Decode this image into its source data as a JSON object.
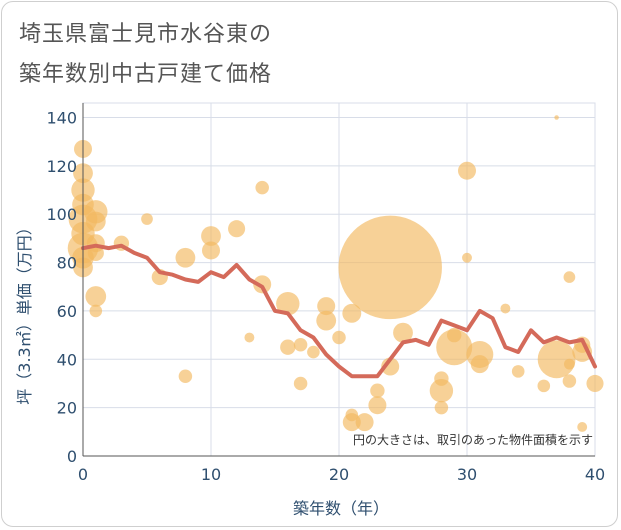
{
  "title_lines": [
    "埼玉県富士見市水谷東の",
    "築年数別中古戸建て価格"
  ],
  "chart_data": {
    "type": "scatter",
    "title": "埼玉県富士見市水谷東の築年数別中古戸建て価格",
    "xlabel": "築年数（年）",
    "ylabel": "坪（3.3㎡）単価（万円）",
    "xlim": [
      0,
      40
    ],
    "ylim": [
      0,
      146
    ],
    "x_ticks": [
      "0",
      "10",
      "20",
      "30",
      "40"
    ],
    "y_ticks": [
      "0",
      "20",
      "40",
      "60",
      "80",
      "100",
      "120",
      "140"
    ],
    "grid": true,
    "note": "円の大きさは、取引のあった物件面積を示す",
    "colors": {
      "bubble": "#f3b95f",
      "line": "#d46a5a",
      "axis_text": "#2f4f6f",
      "grid": "#d8dde8"
    },
    "series": [
      {
        "kind": "bubble",
        "points": [
          {
            "x": 0,
            "y": 127,
            "s": 2.0
          },
          {
            "x": 0,
            "y": 117,
            "s": 2.2
          },
          {
            "x": 0,
            "y": 110,
            "s": 2.6
          },
          {
            "x": 0,
            "y": 104,
            "s": 2.4
          },
          {
            "x": 0,
            "y": 98,
            "s": 3.2
          },
          {
            "x": 0,
            "y": 92,
            "s": 2.6
          },
          {
            "x": 0,
            "y": 86,
            "s": 3.4
          },
          {
            "x": 0,
            "y": 82,
            "s": 2.4
          },
          {
            "x": 0,
            "y": 78,
            "s": 2.2
          },
          {
            "x": 1,
            "y": 101,
            "s": 2.6
          },
          {
            "x": 1,
            "y": 97,
            "s": 2.2
          },
          {
            "x": 1,
            "y": 88,
            "s": 2.0
          },
          {
            "x": 1,
            "y": 84,
            "s": 1.8
          },
          {
            "x": 1,
            "y": 66,
            "s": 2.3
          },
          {
            "x": 1,
            "y": 60,
            "s": 1.4
          },
          {
            "x": 3,
            "y": 88,
            "s": 1.7
          },
          {
            "x": 5,
            "y": 98,
            "s": 1.3
          },
          {
            "x": 6,
            "y": 74,
            "s": 1.8
          },
          {
            "x": 8,
            "y": 82,
            "s": 2.2
          },
          {
            "x": 8,
            "y": 33,
            "s": 1.5
          },
          {
            "x": 10,
            "y": 91,
            "s": 2.2
          },
          {
            "x": 10,
            "y": 85,
            "s": 2.0
          },
          {
            "x": 12,
            "y": 94,
            "s": 1.9
          },
          {
            "x": 13,
            "y": 49,
            "s": 1.1
          },
          {
            "x": 14,
            "y": 111,
            "s": 1.5
          },
          {
            "x": 14,
            "y": 71,
            "s": 2.0
          },
          {
            "x": 16,
            "y": 63,
            "s": 2.6
          },
          {
            "x": 16,
            "y": 45,
            "s": 1.7
          },
          {
            "x": 17,
            "y": 46,
            "s": 1.5
          },
          {
            "x": 17,
            "y": 30,
            "s": 1.5
          },
          {
            "x": 18,
            "y": 43,
            "s": 1.4
          },
          {
            "x": 19,
            "y": 62,
            "s": 2.0
          },
          {
            "x": 19,
            "y": 56,
            "s": 2.2
          },
          {
            "x": 20,
            "y": 49,
            "s": 1.5
          },
          {
            "x": 21,
            "y": 59,
            "s": 2.1
          },
          {
            "x": 21,
            "y": 17,
            "s": 1.4
          },
          {
            "x": 21,
            "y": 14,
            "s": 2.0
          },
          {
            "x": 22,
            "y": 14,
            "s": 2.0
          },
          {
            "x": 23,
            "y": 27,
            "s": 1.6
          },
          {
            "x": 23,
            "y": 21,
            "s": 2.0
          },
          {
            "x": 24,
            "y": 78,
            "s": 11.5
          },
          {
            "x": 24,
            "y": 37,
            "s": 2.0
          },
          {
            "x": 25,
            "y": 51,
            "s": 2.2
          },
          {
            "x": 28,
            "y": 32,
            "s": 1.6
          },
          {
            "x": 28,
            "y": 27,
            "s": 2.6
          },
          {
            "x": 28,
            "y": 20,
            "s": 1.5
          },
          {
            "x": 29,
            "y": 50,
            "s": 1.6
          },
          {
            "x": 29,
            "y": 45,
            "s": 4.0
          },
          {
            "x": 30,
            "y": 118,
            "s": 2.0
          },
          {
            "x": 30,
            "y": 82,
            "s": 1.1
          },
          {
            "x": 31,
            "y": 42,
            "s": 3.0
          },
          {
            "x": 31,
            "y": 38,
            "s": 2.0
          },
          {
            "x": 33,
            "y": 61,
            "s": 1.1
          },
          {
            "x": 34,
            "y": 35,
            "s": 1.4
          },
          {
            "x": 36,
            "y": 29,
            "s": 1.4
          },
          {
            "x": 37,
            "y": 140,
            "s": 0.5
          },
          {
            "x": 37,
            "y": 40,
            "s": 4.2
          },
          {
            "x": 38,
            "y": 74,
            "s": 1.3
          },
          {
            "x": 38,
            "y": 38,
            "s": 1.2
          },
          {
            "x": 38,
            "y": 31,
            "s": 1.5
          },
          {
            "x": 39,
            "y": 46,
            "s": 1.8
          },
          {
            "x": 39,
            "y": 43,
            "s": 2.2
          },
          {
            "x": 39,
            "y": 12,
            "s": 1.1
          },
          {
            "x": 40,
            "y": 30,
            "s": 1.9
          }
        ]
      },
      {
        "kind": "line",
        "points": [
          [
            0,
            86
          ],
          [
            1,
            87
          ],
          [
            2,
            86
          ],
          [
            3,
            87
          ],
          [
            4,
            84
          ],
          [
            5,
            82
          ],
          [
            6,
            76
          ],
          [
            7,
            75
          ],
          [
            8,
            73
          ],
          [
            9,
            72
          ],
          [
            10,
            76
          ],
          [
            11,
            74
          ],
          [
            12,
            79
          ],
          [
            13,
            73
          ],
          [
            14,
            70
          ],
          [
            15,
            60
          ],
          [
            16,
            59
          ],
          [
            17,
            52
          ],
          [
            18,
            49
          ],
          [
            19,
            42
          ],
          [
            20,
            37
          ],
          [
            21,
            33
          ],
          [
            22,
            33
          ],
          [
            23,
            33
          ],
          [
            24,
            40
          ],
          [
            25,
            47
          ],
          [
            26,
            48
          ],
          [
            27,
            46
          ],
          [
            28,
            56
          ],
          [
            29,
            54
          ],
          [
            30,
            52
          ],
          [
            31,
            60
          ],
          [
            32,
            57
          ],
          [
            33,
            45
          ],
          [
            34,
            43
          ],
          [
            35,
            52
          ],
          [
            36,
            47
          ],
          [
            37,
            49
          ],
          [
            38,
            47
          ],
          [
            39,
            48
          ],
          [
            40,
            37
          ]
        ]
      }
    ]
  }
}
